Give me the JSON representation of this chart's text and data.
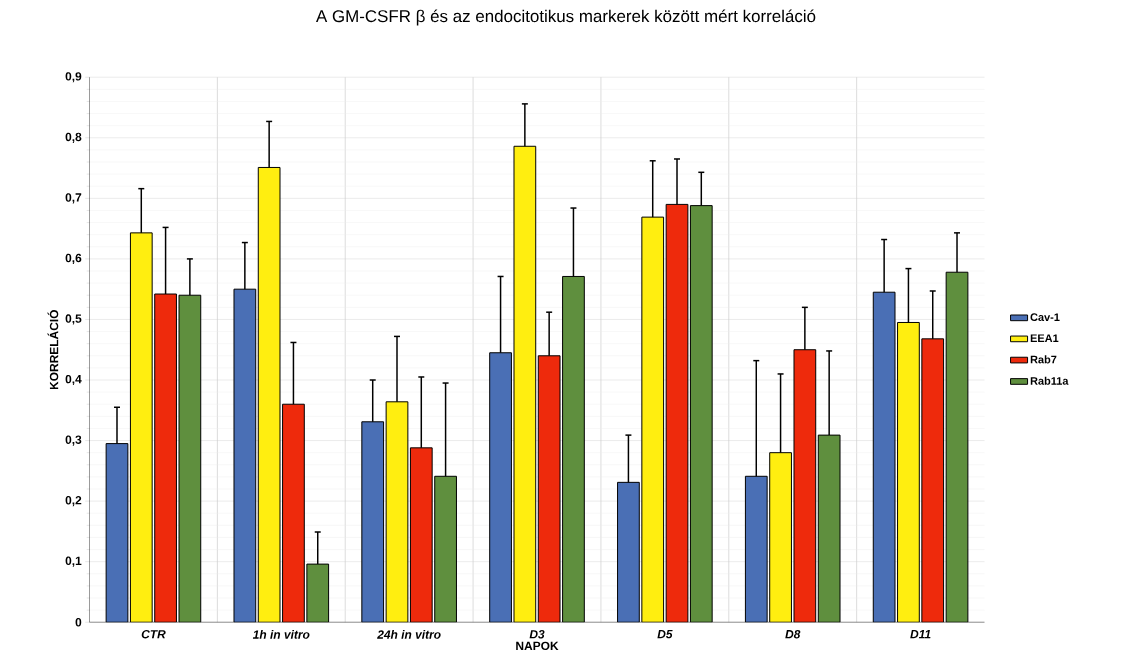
{
  "chart_data": {
    "type": "bar",
    "title": "A GM-CSFR β és az endocitotikus markerek között mért korreláció",
    "xlabel": "NAPOK",
    "ylabel": "KORRELÁCIÓ",
    "categories": [
      "CTR",
      "1h in vitro",
      "24h in vitro",
      "D3",
      "D5",
      "D8",
      "D11"
    ],
    "series": [
      {
        "name": "Cav-1",
        "color": "#4a6fb5",
        "values": [
          0.295,
          0.55,
          0.331,
          0.445,
          0.231,
          0.241,
          0.545
        ],
        "errors": [
          [
            0.295,
            0.355
          ],
          [
            0.55,
            0.627
          ],
          [
            0.331,
            0.4
          ],
          [
            0.445,
            0.571
          ],
          [
            0.231,
            0.309
          ],
          [
            0.241,
            0.432
          ],
          [
            0.545,
            0.632
          ]
        ]
      },
      {
        "name": "EEA1",
        "color": "#ffee10",
        "values": [
          0.643,
          0.751,
          0.364,
          0.786,
          0.669,
          0.28,
          0.495
        ],
        "errors": [
          [
            0.643,
            0.716
          ],
          [
            0.751,
            0.827
          ],
          [
            0.364,
            0.472
          ],
          [
            0.786,
            0.856
          ],
          [
            0.669,
            0.762
          ],
          [
            0.28,
            0.41
          ],
          [
            0.495,
            0.584
          ]
        ]
      },
      {
        "name": "Rab7",
        "color": "#ee2a0c",
        "values": [
          0.542,
          0.36,
          0.288,
          0.44,
          0.69,
          0.45,
          0.468
        ],
        "errors": [
          [
            0.542,
            0.652
          ],
          [
            0.36,
            0.462
          ],
          [
            0.288,
            0.405
          ],
          [
            0.44,
            0.512
          ],
          [
            0.69,
            0.765
          ],
          [
            0.45,
            0.52
          ],
          [
            0.468,
            0.547
          ]
        ]
      },
      {
        "name": "Rab11a",
        "color": "#5f8f3e",
        "values": [
          0.54,
          0.096,
          0.241,
          0.571,
          0.688,
          0.309,
          0.578
        ],
        "errors": [
          [
            0.54,
            0.6
          ],
          [
            0.096,
            0.149
          ],
          [
            0.241,
            0.395
          ],
          [
            0.571,
            0.684
          ],
          [
            0.688,
            0.743
          ],
          [
            0.309,
            0.448
          ],
          [
            0.578,
            0.643
          ]
        ]
      }
    ],
    "ylim": [
      0,
      0.9
    ],
    "yticks": [
      0,
      {
        "value": 0.1,
        "label": "0,1"
      },
      {
        "value": 0.2,
        "label": "0,2"
      },
      {
        "value": 0.3,
        "label": "0,3"
      },
      {
        "value": 0.4,
        "label": "0,4"
      },
      {
        "value": 0.5,
        "label": "0,5"
      },
      {
        "value": 0.6,
        "label": "0,6"
      },
      {
        "value": 0.7,
        "label": "0,7"
      },
      {
        "value": 0.8,
        "label": "0,8"
      },
      {
        "value": 0.9,
        "label": "0,9"
      }
    ],
    "grid": true,
    "legend": "right"
  }
}
